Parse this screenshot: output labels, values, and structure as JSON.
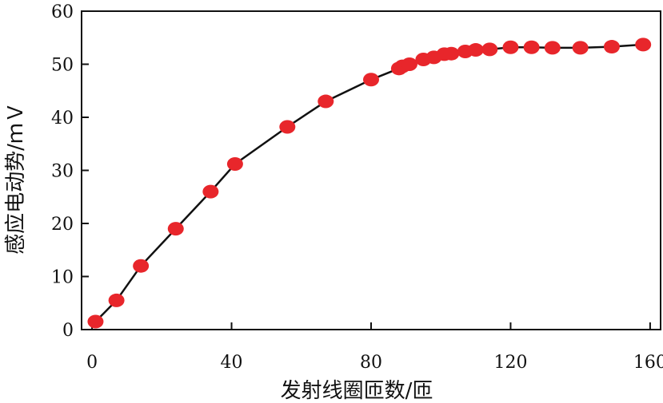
{
  "chart_data": {
    "type": "line",
    "title": "",
    "xlabel": "发射线圈匝数/匝",
    "ylabel": "感应电动势/ｍＶ",
    "xlim": [
      -3,
      163
    ],
    "ylim": [
      0,
      60
    ],
    "xticks": [
      0,
      40,
      80,
      120,
      160
    ],
    "yticks": [
      0,
      10,
      20,
      30,
      40,
      50,
      60
    ],
    "grid": false,
    "legend": "none",
    "series": [
      {
        "name": "",
        "line_color": "#111111",
        "marker_color": "#e8262b",
        "points": [
          [
            1,
            1.5
          ],
          [
            7,
            5.5
          ],
          [
            14,
            12
          ],
          [
            24,
            19
          ],
          [
            34,
            26
          ],
          [
            41,
            31.2
          ],
          [
            56,
            38.2
          ],
          [
            67,
            43
          ],
          [
            80,
            47.1
          ],
          [
            88,
            49.2
          ],
          [
            89,
            49.6
          ],
          [
            91,
            50.0
          ],
          [
            95,
            50.9
          ],
          [
            98,
            51.3
          ],
          [
            101,
            51.9
          ],
          [
            103,
            52.0
          ],
          [
            107,
            52.4
          ],
          [
            110,
            52.7
          ],
          [
            114,
            52.8
          ],
          [
            120,
            53.2
          ],
          [
            126,
            53.2
          ],
          [
            132,
            53.1
          ],
          [
            140,
            53.1
          ],
          [
            149,
            53.3
          ],
          [
            158,
            53.7
          ]
        ]
      }
    ]
  }
}
